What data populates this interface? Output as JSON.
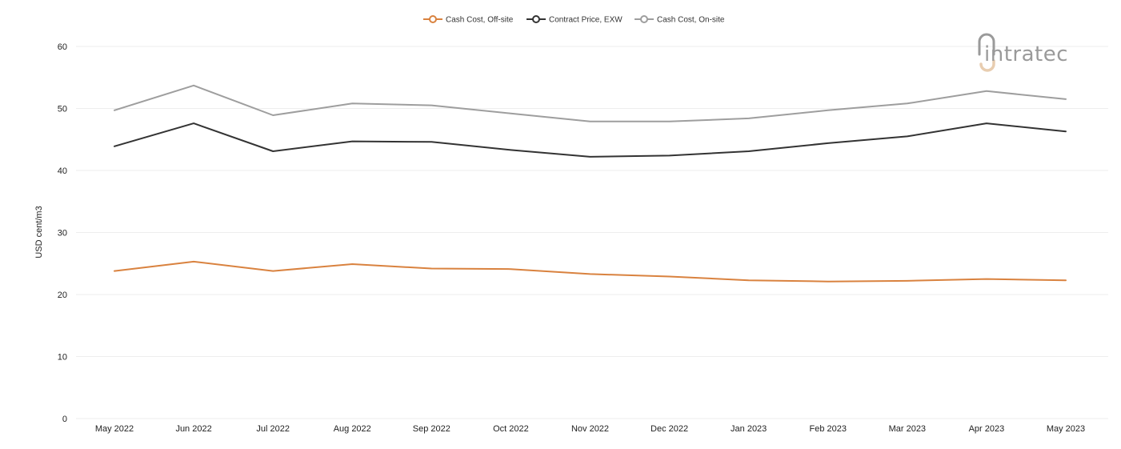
{
  "logo": {
    "text": "intratec",
    "gray": "#9a9a9a",
    "accent": "#e8cdb0"
  },
  "chart_data": {
    "type": "line",
    "title": "",
    "xlabel": "",
    "ylabel": "USD cent/m3",
    "ylim": [
      0,
      60
    ],
    "yticks": [
      0,
      10,
      20,
      30,
      40,
      50,
      60
    ],
    "grid": true,
    "legend_position": "top-center",
    "categories": [
      "May 2022",
      "Jun 2022",
      "Jul 2022",
      "Aug 2022",
      "Sep 2022",
      "Oct 2022",
      "Nov 2022",
      "Dec 2022",
      "Jan 2023",
      "Feb 2023",
      "Mar 2023",
      "Apr 2023",
      "May 2023"
    ],
    "series": [
      {
        "name": "Cash Cost, Off-site",
        "color": "#d9823f",
        "values": [
          23.8,
          25.3,
          23.8,
          24.9,
          24.2,
          24.1,
          23.3,
          22.9,
          22.3,
          22.1,
          22.2,
          22.5,
          22.3
        ]
      },
      {
        "name": "Contract Price, EXW",
        "color": "#333333",
        "values": [
          43.9,
          47.6,
          43.1,
          44.7,
          44.6,
          43.3,
          42.2,
          42.4,
          43.1,
          44.4,
          45.5,
          47.6,
          46.3
        ]
      },
      {
        "name": "Cash Cost, On-site",
        "color": "#9e9e9e",
        "values": [
          49.7,
          53.7,
          48.9,
          50.8,
          50.5,
          49.2,
          47.9,
          47.9,
          48.4,
          49.7,
          50.8,
          52.8,
          51.5
        ]
      }
    ]
  }
}
